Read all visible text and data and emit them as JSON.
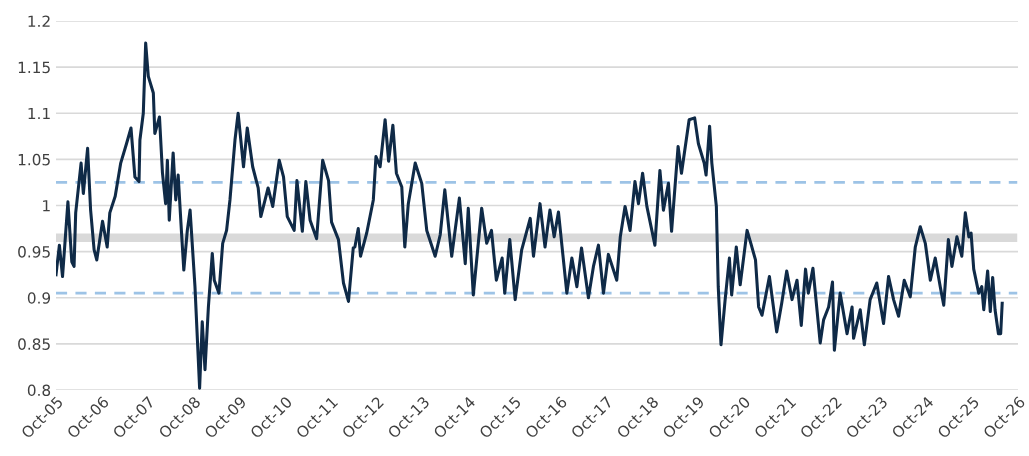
{
  "chart_data": {
    "type": "line",
    "x": [
      "2005-10-01",
      "2005-10-28",
      "2005-11-22",
      "2006-01-04",
      "2006-02-04",
      "2006-02-22",
      "2006-03-07",
      "2006-04-19",
      "2006-05-07",
      "2006-06-10",
      "2006-07-04",
      "2006-08-01",
      "2006-08-22",
      "2006-10-07",
      "2006-11-13",
      "2006-12-04",
      "2007-01-16",
      "2007-03-01",
      "2007-04-16",
      "2007-05-22",
      "2007-06-22",
      "2007-07-25",
      "2007-08-01",
      "2007-08-28",
      "2007-09-16",
      "2007-10-07",
      "2007-11-16",
      "2007-11-28",
      "2008-01-04",
      "2008-01-28",
      "2008-02-22",
      "2008-03-07",
      "2008-03-22",
      "2008-04-22",
      "2008-05-13",
      "2008-06-01",
      "2008-06-28",
      "2008-07-16",
      "2008-08-13",
      "2008-09-04",
      "2008-10-13",
      "2008-11-19",
      "2008-12-10",
      "2009-01-01",
      "2009-01-28",
      "2009-02-28",
      "2009-03-16",
      "2009-04-22",
      "2009-05-22",
      "2009-06-22",
      "2009-07-19",
      "2009-08-28",
      "2009-09-22",
      "2009-11-04",
      "2009-12-04",
      "2010-01-16",
      "2010-03-01",
      "2010-03-22",
      "2010-04-25",
      "2010-05-19",
      "2010-06-25",
      "2010-08-16",
      "2010-09-19",
      "2010-10-19",
      "2010-12-13",
      "2011-01-04",
      "2011-02-16",
      "2011-03-16",
      "2011-04-19",
      "2011-06-10",
      "2011-07-28",
      "2011-09-13",
      "2011-10-07",
      "2011-12-01",
      "2012-01-10",
      "2012-02-19",
      "2012-03-28",
      "2012-04-10",
      "2012-05-07",
      "2012-05-25",
      "2012-07-13",
      "2012-09-04",
      "2012-09-25",
      "2012-10-28",
      "2012-12-07",
      "2013-01-04",
      "2013-02-07",
      "2013-03-07",
      "2013-04-19",
      "2013-05-13",
      "2013-06-10",
      "2013-08-04",
      "2013-09-25",
      "2013-11-04",
      "2014-01-10",
      "2014-02-19",
      "2014-03-28",
      "2014-05-22",
      "2014-07-22",
      "2014-09-07",
      "2014-10-01",
      "2014-11-10",
      "2015-01-16",
      "2015-02-25",
      "2015-04-04",
      "2015-05-13",
      "2015-06-28",
      "2015-07-19",
      "2015-08-28",
      "2015-10-10",
      "2015-12-01",
      "2016-02-07",
      "2016-03-04",
      "2016-04-25",
      "2016-06-04",
      "2016-07-13",
      "2016-08-16",
      "2016-09-19",
      "2016-11-25",
      "2017-01-04",
      "2017-02-13",
      "2017-03-22",
      "2017-05-16",
      "2017-06-25",
      "2017-08-04",
      "2017-09-13",
      "2017-10-22",
      "2017-12-28",
      "2018-01-25",
      "2018-03-04",
      "2018-04-13",
      "2018-05-22",
      "2018-06-19",
      "2018-07-22",
      "2018-08-25",
      "2018-10-28",
      "2018-12-07",
      "2019-01-04",
      "2019-02-13",
      "2019-03-10",
      "2019-05-01",
      "2019-05-28",
      "2019-07-28",
      "2019-09-10",
      "2019-10-10",
      "2019-11-25",
      "2019-12-10",
      "2020-01-07",
      "2020-01-25",
      "2020-03-01",
      "2020-03-16",
      "2020-04-07",
      "2020-05-10",
      "2020-06-13",
      "2020-07-01",
      "2020-08-07",
      "2020-09-07",
      "2020-11-01",
      "2020-12-01",
      "2021-01-07",
      "2021-02-01",
      "2021-02-28",
      "2021-04-28",
      "2021-06-25",
      "2021-08-04",
      "2021-09-13",
      "2021-10-25",
      "2021-12-04",
      "2022-01-07",
      "2022-02-10",
      "2022-03-04",
      "2022-04-10",
      "2022-06-07",
      "2022-07-04",
      "2022-08-13",
      "2022-09-13",
      "2022-09-28",
      "2022-11-13",
      "2023-01-07",
      "2023-02-16",
      "2023-02-28",
      "2023-04-22",
      "2023-05-25",
      "2023-07-10",
      "2023-09-01",
      "2023-10-25",
      "2023-12-04",
      "2024-01-13",
      "2024-02-22",
      "2024-04-07",
      "2024-05-25",
      "2024-07-04",
      "2024-08-13",
      "2024-09-22",
      "2024-11-01",
      "2024-12-10",
      "2025-01-19",
      "2025-02-16",
      "2025-03-25",
      "2025-04-22",
      "2025-06-01",
      "2025-07-10",
      "2025-08-07",
      "2025-09-04",
      "2025-09-22",
      "2025-10-13",
      "2025-11-22",
      "2025-12-16",
      "2026-01-01",
      "2026-02-01",
      "2026-02-22",
      "2026-03-13",
      "2026-04-01",
      "2026-04-28",
      "2026-05-16",
      "2026-05-28"
    ],
    "series": [
      {
        "color": "#0f2a47",
        "values": [
          0.925,
          0.957,
          0.923,
          1.004,
          0.939,
          0.934,
          0.992,
          1.046,
          1.013,
          1.062,
          0.995,
          0.952,
          0.941,
          0.983,
          0.955,
          0.992,
          1.01,
          1.046,
          1.067,
          1.084,
          1.031,
          1.026,
          1.071,
          1.1,
          1.176,
          1.14,
          1.122,
          1.078,
          1.096,
          1.035,
          1.002,
          1.049,
          0.984,
          1.057,
          1.006,
          1.033,
          0.97,
          0.93,
          0.973,
          0.995,
          0.912,
          0.802,
          0.874,
          0.822,
          0.89,
          0.948,
          0.919,
          0.905,
          0.959,
          0.973,
          1.006,
          1.071,
          1.1,
          1.042,
          1.084,
          1.042,
          1.019,
          0.988,
          1.006,
          1.019,
          0.999,
          1.049,
          1.031,
          0.988,
          0.973,
          1.027,
          0.972,
          1.026,
          0.984,
          0.964,
          1.049,
          1.027,
          0.982,
          0.963,
          0.916,
          0.896,
          0.954,
          0.955,
          0.975,
          0.945,
          0.97,
          1.006,
          1.053,
          1.042,
          1.093,
          1.048,
          1.087,
          1.035,
          1.02,
          0.955,
          1.002,
          1.046,
          1.024,
          0.973,
          0.945,
          0.968,
          1.017,
          0.945,
          1.008,
          0.937,
          0.997,
          0.903,
          0.997,
          0.959,
          0.973,
          0.919,
          0.943,
          0.905,
          0.963,
          0.898,
          0.952,
          0.986,
          0.945,
          1.002,
          0.955,
          0.995,
          0.966,
          0.993,
          0.905,
          0.943,
          0.912,
          0.954,
          0.9,
          0.934,
          0.957,
          0.905,
          0.947,
          0.919,
          0.966,
          0.999,
          0.973,
          1.026,
          1.002,
          1.035,
          0.999,
          0.957,
          1.038,
          0.995,
          1.024,
          0.972,
          1.064,
          1.035,
          1.093,
          1.095,
          1.067,
          1.046,
          1.033,
          1.086,
          1.046,
          0.999,
          0.912,
          0.849,
          0.898,
          0.943,
          0.903,
          0.955,
          0.914,
          0.973,
          0.959,
          0.941,
          0.89,
          0.881,
          0.923,
          0.863,
          0.894,
          0.929,
          0.898,
          0.919,
          0.87,
          0.931,
          0.905,
          0.932,
          0.851,
          0.876,
          0.89,
          0.917,
          0.843,
          0.905,
          0.861,
          0.89,
          0.856,
          0.887,
          0.849,
          0.898,
          0.916,
          0.872,
          0.923,
          0.898,
          0.88,
          0.919,
          0.901,
          0.955,
          0.977,
          0.959,
          0.919,
          0.943,
          0.912,
          0.892,
          0.963,
          0.934,
          0.966,
          0.945,
          0.992,
          0.966,
          0.97,
          0.931,
          0.905,
          0.912,
          0.887,
          0.929,
          0.885,
          0.922,
          0.887,
          0.861,
          0.861,
          0.894
        ]
      }
    ],
    "xlim": [
      "2005-10-01",
      "2026-10-01"
    ],
    "xticks": [
      {
        "value": "2005-10-01",
        "label": "Oct-05"
      },
      {
        "value": "2006-10-01",
        "label": "Oct-06"
      },
      {
        "value": "2007-10-01",
        "label": "Oct-07"
      },
      {
        "value": "2008-10-01",
        "label": "Oct-08"
      },
      {
        "value": "2009-10-01",
        "label": "Oct-09"
      },
      {
        "value": "2010-10-01",
        "label": "Oct-10"
      },
      {
        "value": "2011-10-01",
        "label": "Oct-11"
      },
      {
        "value": "2012-10-01",
        "label": "Oct-12"
      },
      {
        "value": "2013-10-01",
        "label": "Oct-13"
      },
      {
        "value": "2014-10-01",
        "label": "Oct-14"
      },
      {
        "value": "2015-10-01",
        "label": "Oct-15"
      },
      {
        "value": "2016-10-01",
        "label": "Oct-16"
      },
      {
        "value": "2017-10-01",
        "label": "Oct-17"
      },
      {
        "value": "2018-10-01",
        "label": "Oct-18"
      },
      {
        "value": "2019-10-01",
        "label": "Oct-19"
      },
      {
        "value": "2020-10-01",
        "label": "Oct-20"
      },
      {
        "value": "2021-10-01",
        "label": "Oct-21"
      },
      {
        "value": "2022-10-01",
        "label": "Oct-22"
      },
      {
        "value": "2023-10-01",
        "label": "Oct-23"
      },
      {
        "value": "2024-10-01",
        "label": "Oct-24"
      },
      {
        "value": "2025-10-01",
        "label": "Oct-25"
      },
      {
        "value": "2026-10-01",
        "label": "Oct-26"
      }
    ],
    "ylim": [
      0.8,
      1.2
    ],
    "yticks": [
      0.8,
      0.85,
      0.9,
      0.95,
      1,
      1.05,
      1.1,
      1.15,
      1.2
    ],
    "grid": "y",
    "marker": "none",
    "line_style": "solid",
    "ref_lines": [
      {
        "axis": "y",
        "value": 1.025,
        "color": "#9dc3e6",
        "line_style": "dashed"
      },
      {
        "axis": "y",
        "value": 0.905,
        "color": "#9dc3e6",
        "line_style": "dashed"
      },
      {
        "axis": "y",
        "value": 0.965,
        "color": "#d9d9d9",
        "line_style": "solid"
      }
    ]
  }
}
